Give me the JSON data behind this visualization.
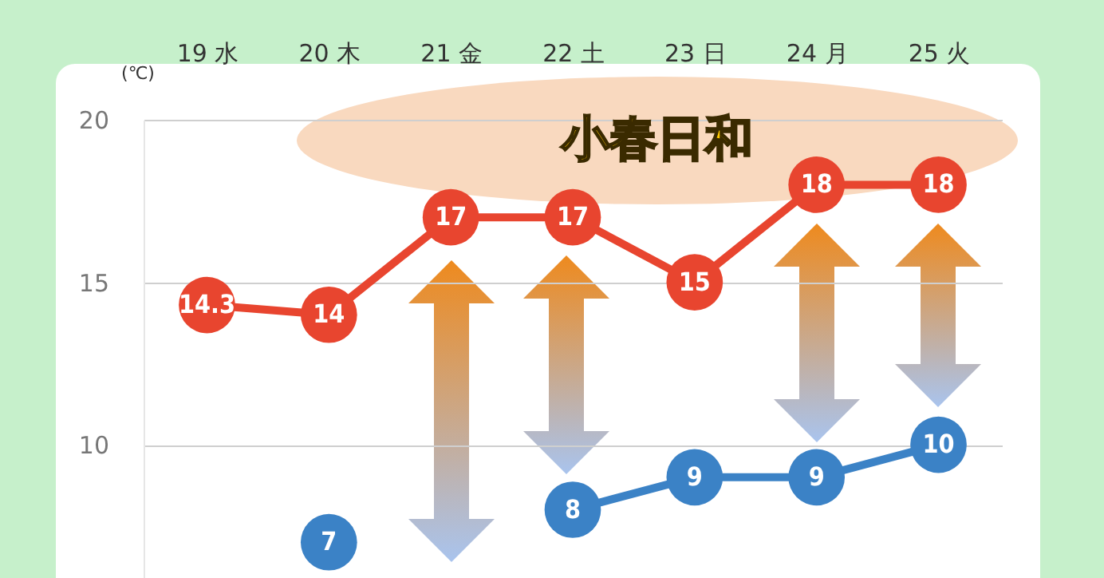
{
  "chart_data": {
    "type": "line",
    "ylabel": "(℃)",
    "categories": [
      "19 水",
      "20 木",
      "21 金",
      "22 土",
      "23 日",
      "24 月",
      "25 火"
    ],
    "series": [
      {
        "color": "#e8452f",
        "values": [
          14.3,
          14,
          17,
          17,
          15,
          18,
          18
        ]
      },
      {
        "color": "#3b82c6",
        "values": [
          null,
          7,
          null,
          8,
          9,
          9,
          10
        ]
      }
    ],
    "ylim": [
      5.9,
      20
    ],
    "yticks": [
      10,
      15,
      20
    ],
    "grid": "y",
    "data_labels": true,
    "marker": "circle",
    "line_style": "solid",
    "annotations": [
      "小春日和"
    ]
  }
}
